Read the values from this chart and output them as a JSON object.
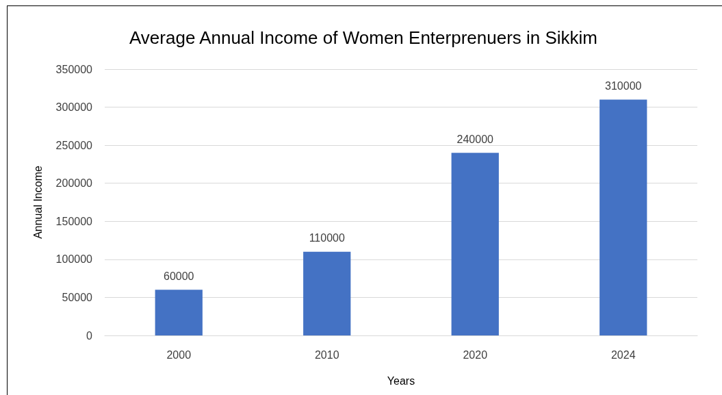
{
  "chart_data": {
    "type": "bar",
    "title": "Average Annual Income of Women Enterprenuers in Sikkim",
    "xlabel": "Years",
    "ylabel": "Annual Income",
    "categories": [
      "2000",
      "2010",
      "2020",
      "2024"
    ],
    "values": [
      60000,
      110000,
      240000,
      310000
    ],
    "color": "#4472c4",
    "ylim": [
      0,
      350000
    ],
    "yticks": [
      0,
      50000,
      100000,
      150000,
      200000,
      250000,
      300000,
      350000
    ],
    "grid": "y",
    "data_labels": true
  }
}
